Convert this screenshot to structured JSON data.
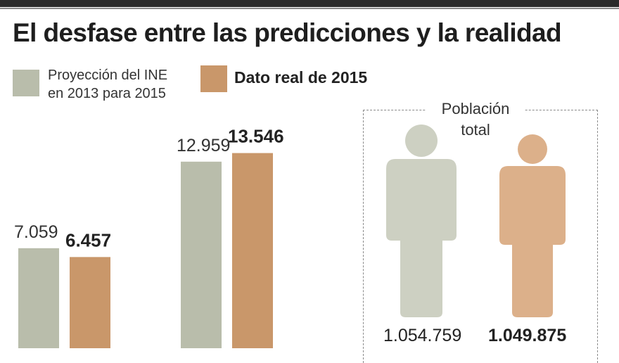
{
  "title": "El desfase entre las predicciones y la realidad",
  "legend": {
    "projection_line1": "Proyección del INE",
    "projection_line2": "en 2013 para 2015",
    "real": "Dato real de 2015"
  },
  "colors": {
    "projection": "#b9bdab",
    "real": "#c9976a",
    "person_projection": "#cdd0c2",
    "person_real": "#dcb08a"
  },
  "chart_data": {
    "type": "bar",
    "title": "El desfase entre las predicciones y la realidad",
    "categories": [
      "",
      ""
    ],
    "series": [
      {
        "name": "Proyección del INE en 2013 para 2015",
        "values": [
          7059,
          12959
        ]
      },
      {
        "name": "Dato real de 2015",
        "values": [
          6457,
          13546
        ]
      }
    ],
    "data_labels": [
      [
        "7.059",
        "12.959"
      ],
      [
        "6.457",
        "13.546"
      ]
    ],
    "ylim": [
      0,
      14300
    ],
    "grid": false,
    "legend_position": "top-left"
  },
  "population": {
    "label_line1": "Población",
    "label_line2": "total",
    "projection_value": "1.054.759",
    "real_value": "1.049.875",
    "icon": "person-icon"
  }
}
